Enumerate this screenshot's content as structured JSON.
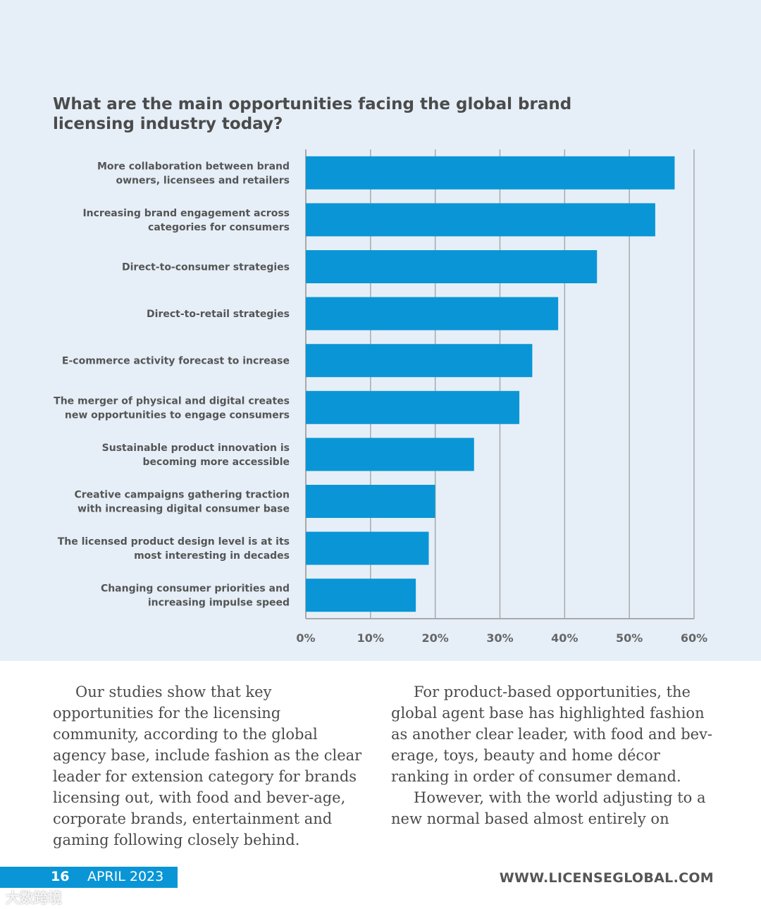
{
  "chart_data": {
    "type": "bar",
    "orientation": "horizontal",
    "title": "What are the main opportunities facing the global brand licensing industry today?",
    "categories": [
      [
        "More collaboration between brand",
        "owners, licensees and retailers"
      ],
      [
        "Increasing brand engagement across",
        "categories for consumers"
      ],
      [
        "Direct-to-consumer strategies"
      ],
      [
        "Direct-to-retail strategies"
      ],
      [
        "E-commerce activity forecast to increase"
      ],
      [
        "The merger of physical and digital creates",
        "new opportunities to engage consumers"
      ],
      [
        "Sustainable product innovation is",
        "becoming more accessible"
      ],
      [
        "Creative campaigns gathering traction",
        "with increasing digital consumer base"
      ],
      [
        "The licensed product design level is at its",
        "most interesting in decades"
      ],
      [
        "Changing consumer priorities and",
        "increasing impulse speed"
      ]
    ],
    "values": [
      57,
      54,
      45,
      39,
      35,
      33,
      26,
      20,
      19,
      17
    ],
    "xlim": [
      0,
      60
    ],
    "xticks": [
      0,
      10,
      20,
      30,
      40,
      50,
      60
    ],
    "xtick_labels": [
      "0%",
      "10%",
      "20%",
      "30%",
      "40%",
      "50%",
      "60%"
    ],
    "grid": true,
    "bar_color": "#0a96d6",
    "xlabel": "",
    "ylabel": ""
  },
  "body_text": {
    "left": "Our studies show that key opportunities for the licensing community, according to the global agency base, include fashion as the clear leader for extension category for brands licensing out, with food and bever-age, corporate brands, entertainment and gaming following closely behind.",
    "right_p1": "For product-based opportunities, the global agent base has highlighted fashion as another clear leader, with food and bev-erage, toys, beauty and home décor ranking in order of consumer demand.",
    "right_p2": "However, with the world adjusting to a new normal based almost entirely on"
  },
  "footer": {
    "page_number": "16",
    "issue": "APRIL 2023",
    "website": "WWW.LICENSEGLOBAL.COM",
    "accent_color": "#0a96d6"
  },
  "watermark": "大数跨境"
}
